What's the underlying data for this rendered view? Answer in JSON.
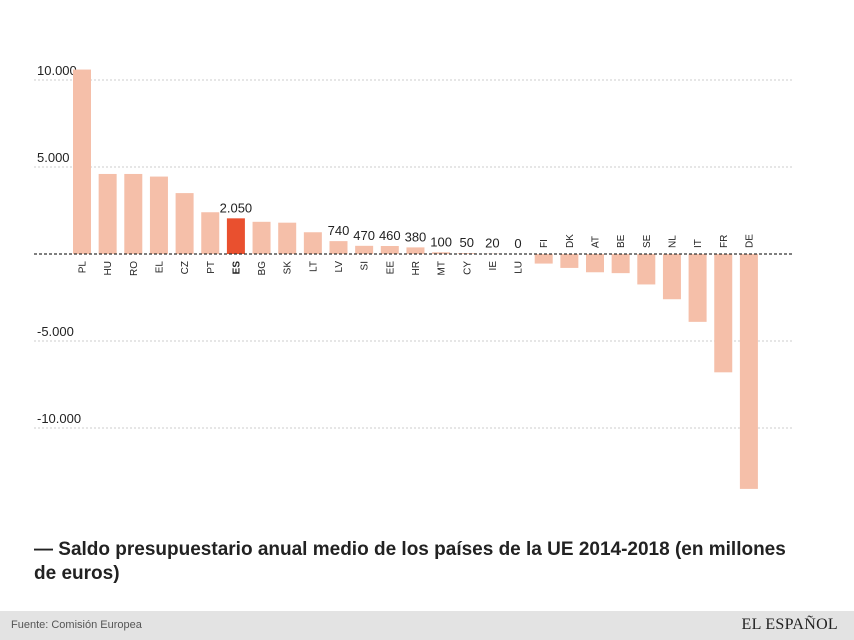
{
  "chart_data": {
    "type": "bar",
    "title": "— Saldo presupuestario anual medio de los países de la UE 2014-2018 (en millones de euros)",
    "xlabel": "",
    "ylabel": "",
    "ylim": [
      -15000,
      11000
    ],
    "grid": true,
    "yticks": [
      {
        "value": 10000,
        "label": "10.000"
      },
      {
        "value": 5000,
        "label": "5.000"
      },
      {
        "value": -5000,
        "label": "-5.000"
      },
      {
        "value": -10000,
        "label": "-10.000"
      }
    ],
    "categories": [
      "PL",
      "HU",
      "RO",
      "EL",
      "CZ",
      "PT",
      "ES",
      "BG",
      "SK",
      "LT",
      "LV",
      "SI",
      "EE",
      "HR",
      "MT",
      "CY",
      "IE",
      "LU",
      "FI",
      "DK",
      "AT",
      "BE",
      "SE",
      "NL",
      "IT",
      "FR",
      "DE"
    ],
    "values": [
      10600,
      4600,
      4600,
      4450,
      3500,
      2400,
      2050,
      1850,
      1800,
      1250,
      740,
      470,
      460,
      380,
      100,
      50,
      20,
      0,
      -550,
      -800,
      -1050,
      -1100,
      -1750,
      -2600,
      -3900,
      -6800,
      -13500
    ],
    "data_labels": [
      "",
      "",
      "",
      "",
      "",
      "",
      "2.050",
      "",
      "",
      "",
      "740",
      "470",
      "460",
      "380",
      "100",
      "50",
      "20",
      "0",
      "",
      "",
      "",
      "",
      "",
      "",
      "",
      "",
      ""
    ],
    "highlight": "ES",
    "colors": {
      "bar": "#f5bfa9",
      "highlight": "#e9502f",
      "grid": "#cccccc",
      "zero_line": "#333333",
      "text": "#222222"
    }
  },
  "caption": "— Saldo presupuestario anual medio de los países de la UE 2014-2018 (en millones de euros)",
  "footer": {
    "source": "Fuente: Comisión Europea",
    "brand": "EL ESPAÑOL"
  }
}
